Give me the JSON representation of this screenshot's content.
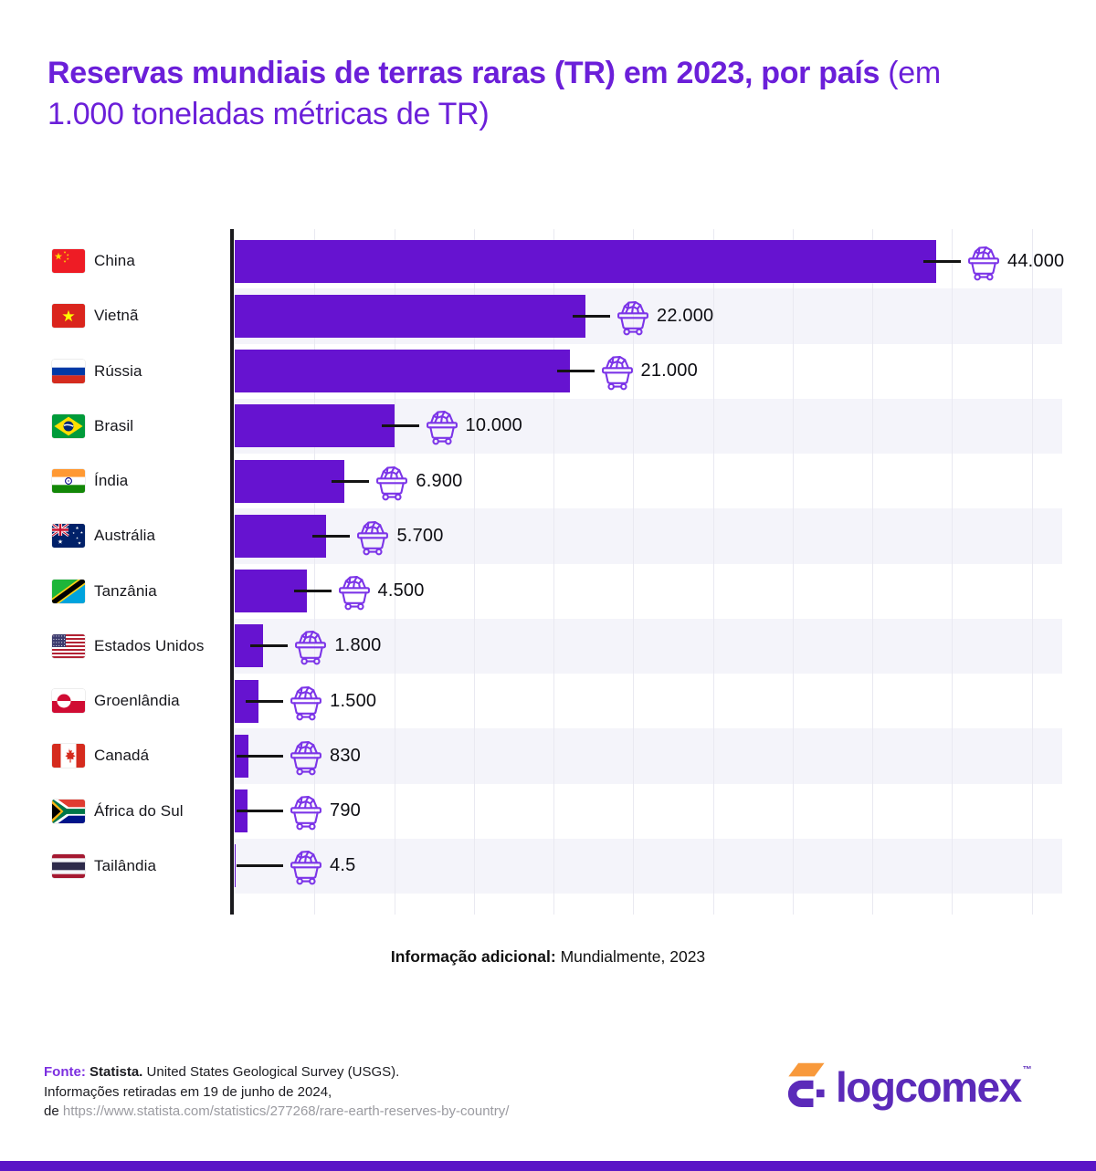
{
  "title": {
    "bold": "Reservas mundiais de terras raras (TR) em 2023, por país",
    "light": " (em 1.000 toneladas métricas de TR)"
  },
  "chart_data": {
    "type": "bar",
    "orientation": "horizontal",
    "title": "Reservas mundiais de terras raras (TR) em 2023, por país",
    "unit": "1.000 toneladas métricas de TR",
    "categories": [
      "China",
      "Vietnã",
      "Rússia",
      "Brasil",
      "Índia",
      "Austrália",
      "Tanzânia",
      "Estados Unidos",
      "Groenlândia",
      "Canadá",
      "África do Sul",
      "Tailândia"
    ],
    "values": [
      44000,
      22000,
      21000,
      10000,
      6900,
      5700,
      4500,
      1800,
      1500,
      830,
      790,
      4.5
    ],
    "value_labels": [
      "44.000",
      "22.000",
      "21.000",
      "10.000",
      "6.900",
      "5.700",
      "4.500",
      "1.800",
      "1.500",
      "830",
      "790",
      "4.5"
    ],
    "flags": [
      "china",
      "vietnam",
      "russia",
      "brazil",
      "india",
      "australia",
      "tanzania",
      "usa",
      "greenland",
      "canada",
      "south-africa",
      "thailand"
    ],
    "xlim": [
      0,
      52000
    ],
    "gridline_interval": 5000,
    "grid": "vertical-only",
    "legend": "none",
    "bar_color": "#6613d0",
    "marker_icon": "minecart-icon"
  },
  "additional_info": {
    "label": "Informação adicional:",
    "text": "Mundialmente, 2023"
  },
  "footer": {
    "source_label": "Fonte:",
    "source_name": "Statista.",
    "source_rest": "United States Geological Survey (USGS).",
    "line2": "Informações retiradas em 19 de junho de 2024,",
    "line3_prefix": "de ",
    "url": "https://www.statista.com/statistics/277268/rare-earth-reserves-by-country/"
  },
  "logo": {
    "text": "logcomex",
    "tm": "™"
  },
  "colors": {
    "bar": "#6613d0",
    "title": "#6b1fd9",
    "icon_purple": "#7c35e8",
    "row_band": "#f4f4fa",
    "gridline": "#e9e9f1",
    "axis": "#1a1a1e",
    "bottom_strip": "#5a16c6",
    "logo_purple": "#5b2ab9",
    "logo_orange": "#f8993b",
    "url_gray": "#9b9ba1"
  }
}
